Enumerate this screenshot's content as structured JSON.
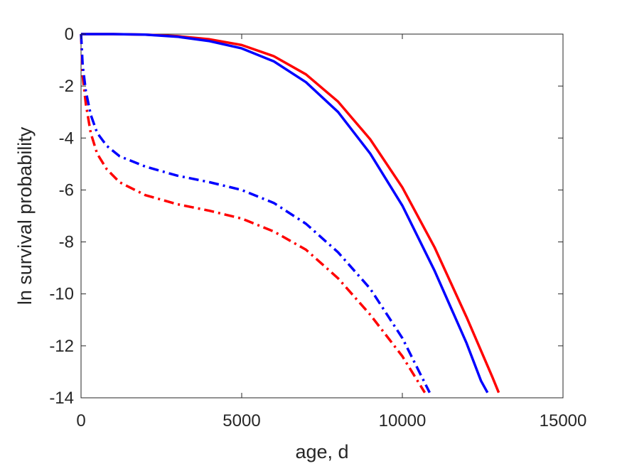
{
  "chart_data": {
    "type": "line",
    "title": "",
    "xlabel": "age, d",
    "ylabel": "ln survival probability",
    "xlim": [
      0,
      15000
    ],
    "ylim": [
      -14,
      0
    ],
    "xticks": [
      0,
      5000,
      10000,
      15000
    ],
    "yticks": [
      0,
      -2,
      -4,
      -6,
      -8,
      -10,
      -12,
      -14
    ],
    "grid": false,
    "legend": "none",
    "series": [
      {
        "color": "#ff0000",
        "style": "solid",
        "points": [
          [
            0,
            0
          ],
          [
            1000,
            0
          ],
          [
            2000,
            -0.02
          ],
          [
            3000,
            -0.08
          ],
          [
            4000,
            -0.2
          ],
          [
            5000,
            -0.42
          ],
          [
            6000,
            -0.85
          ],
          [
            7000,
            -1.55
          ],
          [
            8000,
            -2.6
          ],
          [
            9000,
            -4.05
          ],
          [
            10000,
            -5.9
          ],
          [
            11000,
            -8.2
          ],
          [
            12000,
            -10.9
          ],
          [
            12800,
            -13.2
          ],
          [
            13000,
            -13.8
          ]
        ]
      },
      {
        "color": "#0000ff",
        "style": "solid",
        "points": [
          [
            0,
            0
          ],
          [
            1000,
            0
          ],
          [
            2000,
            -0.02
          ],
          [
            3000,
            -0.1
          ],
          [
            4000,
            -0.27
          ],
          [
            5000,
            -0.55
          ],
          [
            6000,
            -1.05
          ],
          [
            7000,
            -1.85
          ],
          [
            8000,
            -3.0
          ],
          [
            9000,
            -4.6
          ],
          [
            10000,
            -6.6
          ],
          [
            11000,
            -9.1
          ],
          [
            12000,
            -11.9
          ],
          [
            12450,
            -13.35
          ],
          [
            12650,
            -13.8
          ]
        ]
      },
      {
        "color": "#ff0000",
        "style": "dashdot",
        "points": [
          [
            0,
            0
          ],
          [
            50,
            -1.6
          ],
          [
            150,
            -2.7
          ],
          [
            300,
            -3.8
          ],
          [
            500,
            -4.6
          ],
          [
            800,
            -5.2
          ],
          [
            1200,
            -5.7
          ],
          [
            2000,
            -6.2
          ],
          [
            3000,
            -6.55
          ],
          [
            4000,
            -6.8
          ],
          [
            5000,
            -7.1
          ],
          [
            6000,
            -7.6
          ],
          [
            7000,
            -8.3
          ],
          [
            8000,
            -9.4
          ],
          [
            9000,
            -10.8
          ],
          [
            10000,
            -12.4
          ],
          [
            10700,
            -13.8
          ]
        ]
      },
      {
        "color": "#0000ff",
        "style": "dashdot",
        "points": [
          [
            0,
            0
          ],
          [
            50,
            -1.2
          ],
          [
            150,
            -2.2
          ],
          [
            300,
            -3.1
          ],
          [
            500,
            -3.8
          ],
          [
            800,
            -4.3
          ],
          [
            1200,
            -4.7
          ],
          [
            2000,
            -5.1
          ],
          [
            3000,
            -5.45
          ],
          [
            4000,
            -5.7
          ],
          [
            5000,
            -6.0
          ],
          [
            6000,
            -6.5
          ],
          [
            7000,
            -7.3
          ],
          [
            8000,
            -8.4
          ],
          [
            9000,
            -9.8
          ],
          [
            10000,
            -11.7
          ],
          [
            10850,
            -13.8
          ]
        ]
      }
    ]
  }
}
